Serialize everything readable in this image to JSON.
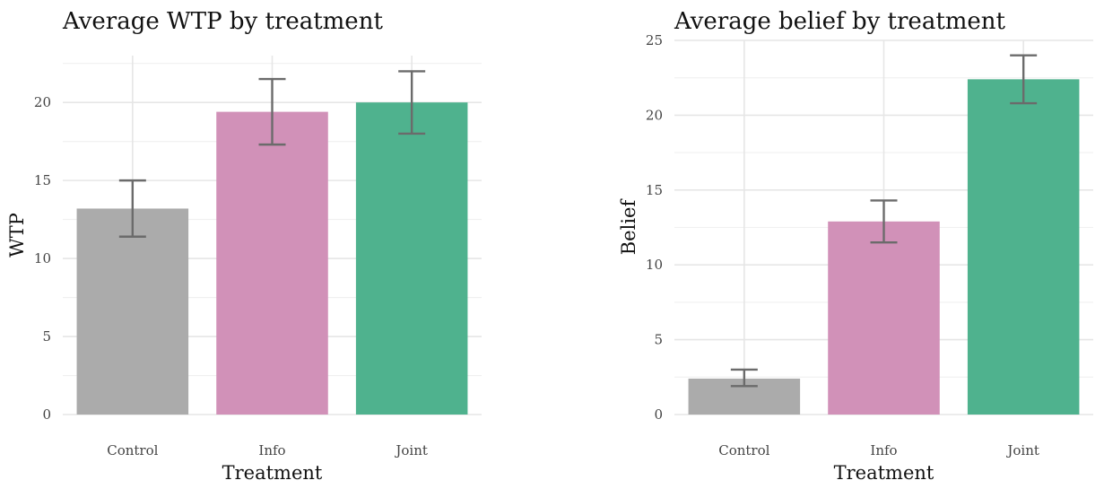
{
  "chart_data": [
    {
      "type": "bar",
      "title": "Average WTP by treatment",
      "xlabel": "Treatment",
      "ylabel": "WTP",
      "categories": [
        "Control",
        "Info",
        "Joint"
      ],
      "values": [
        13.2,
        19.4,
        20.0
      ],
      "error_low": [
        11.4,
        17.3,
        18.0
      ],
      "error_high": [
        15.0,
        21.5,
        22.0
      ],
      "ylim": [
        0,
        23
      ],
      "yticks": [
        0,
        5,
        10,
        15,
        20
      ],
      "grid": true,
      "colors": [
        "#a9a9a9",
        "#d08fb7",
        "#4bb08c"
      ]
    },
    {
      "type": "bar",
      "title": "Average belief by treatment",
      "xlabel": "Treatment",
      "ylabel": "Belief",
      "categories": [
        "Control",
        "Info",
        "Joint"
      ],
      "values": [
        2.4,
        12.9,
        22.4
      ],
      "error_low": [
        1.9,
        11.5,
        20.8
      ],
      "error_high": [
        3.0,
        14.3,
        24.0
      ],
      "ylim": [
        0,
        25
      ],
      "yticks": [
        0,
        5,
        10,
        15,
        20,
        25
      ],
      "grid": true,
      "colors": [
        "#a9a9a9",
        "#d08fb7",
        "#4bb08c"
      ]
    }
  ]
}
